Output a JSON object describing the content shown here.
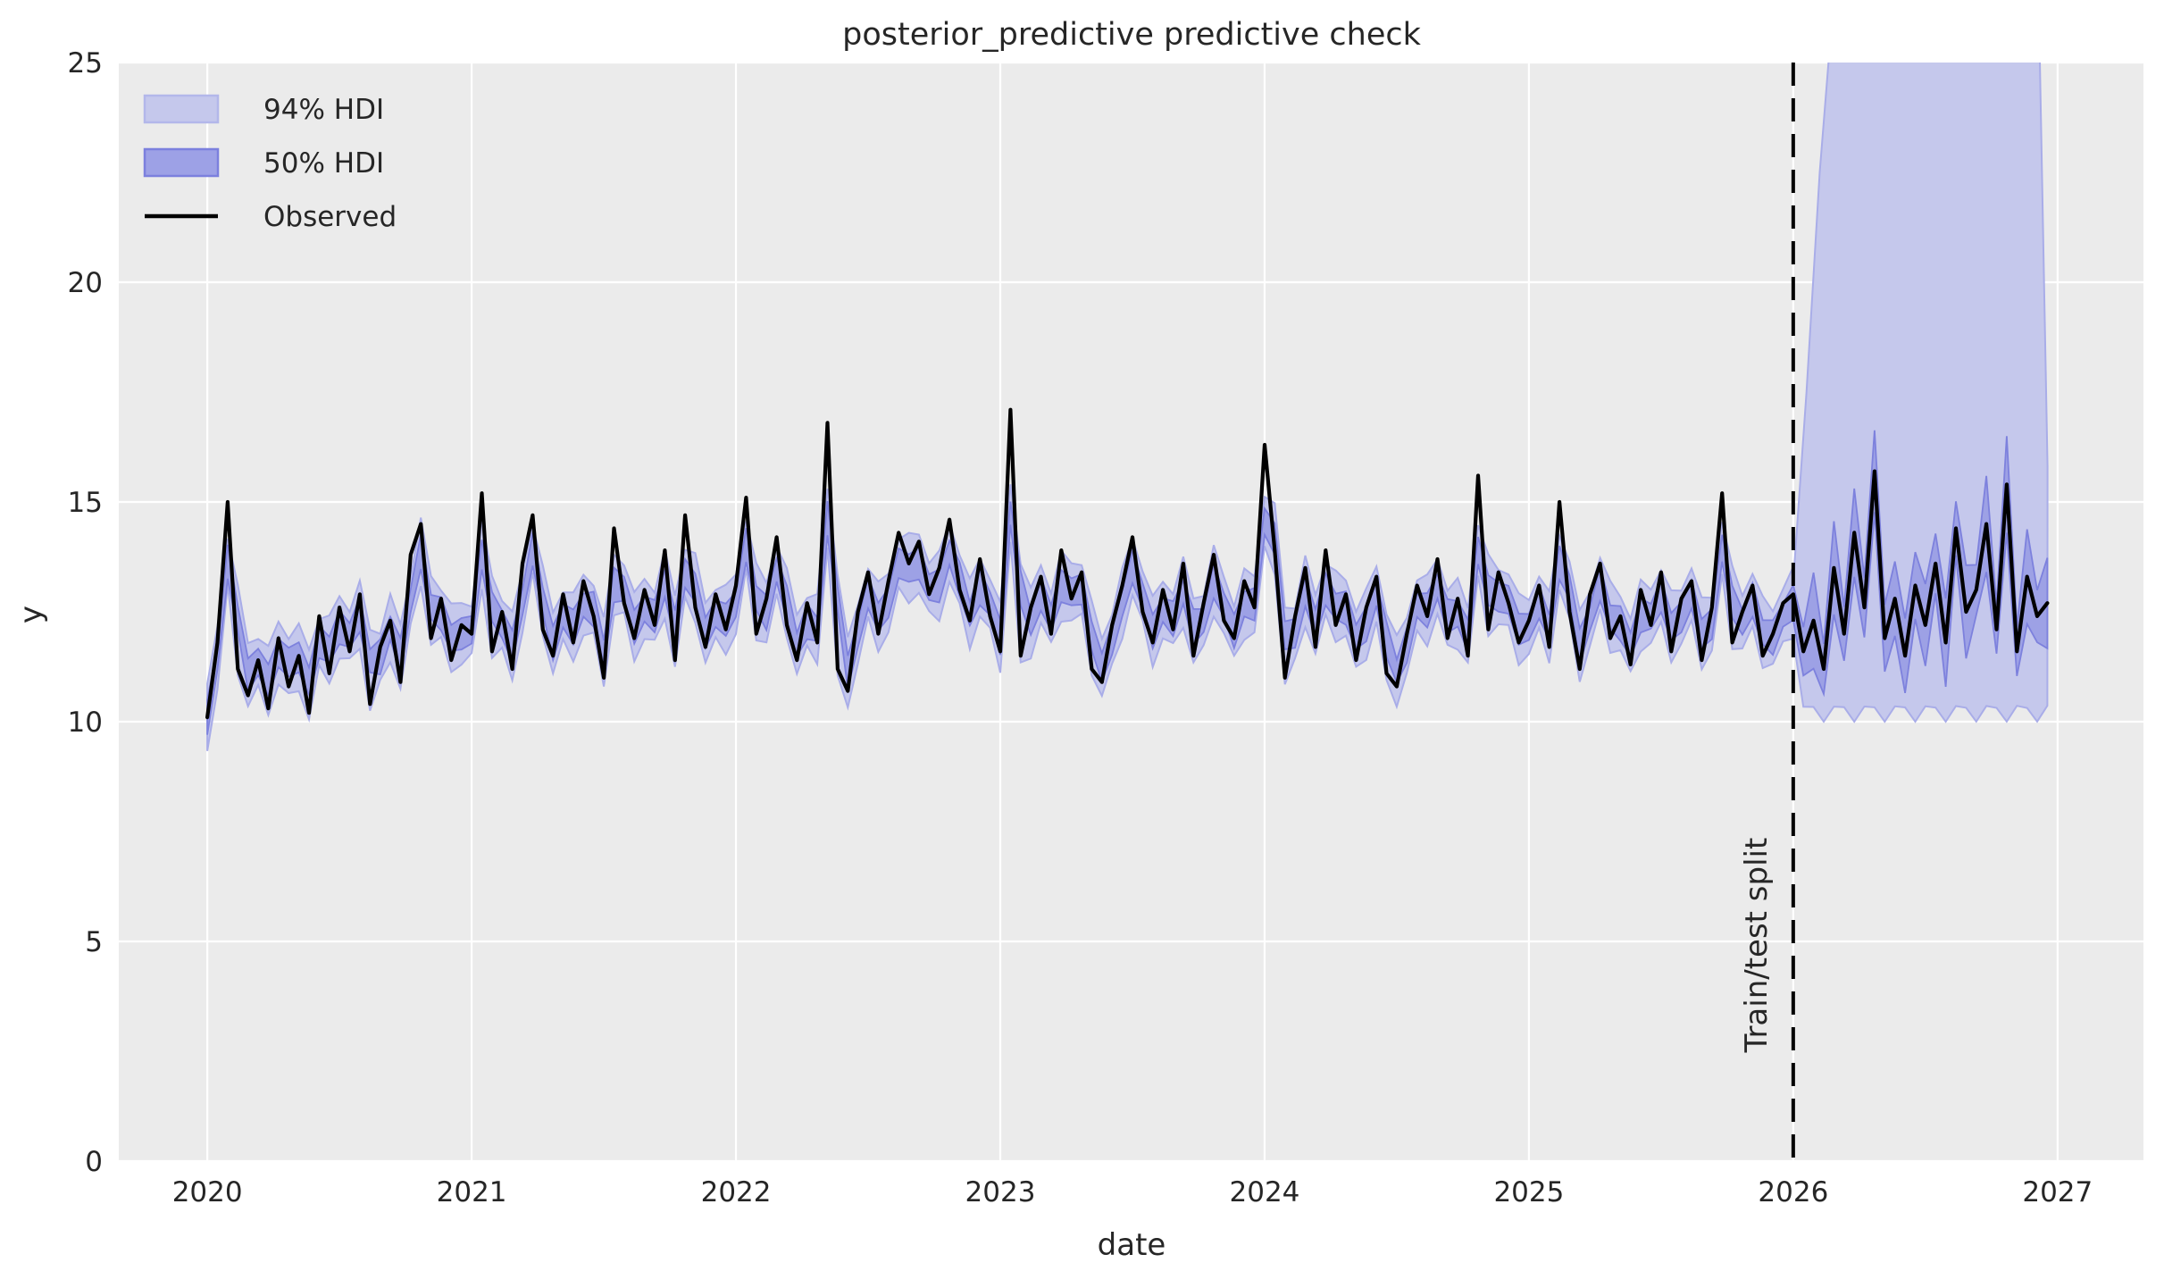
{
  "title": "posterior_predictive predictive check",
  "axes": {
    "xlabel": "date",
    "ylabel": "y"
  },
  "legend": {
    "items": [
      {
        "label": "94% HDI",
        "type": "patch",
        "fill": "#c5c8ec",
        "edge": "#b3b7ea"
      },
      {
        "label": "50% HDI",
        "type": "patch",
        "fill": "#9da1e6",
        "edge": "#7c80de"
      },
      {
        "label": "Observed",
        "type": "line",
        "color": "#000000"
      }
    ]
  },
  "annotations": {
    "split_label": "Train/test split",
    "split_x": 2026.0
  },
  "colors": {
    "figure_bg": "#ffffff",
    "plot_bg": "#ebebeb",
    "grid": "#ffffff",
    "hdi94_fill": "#c5c8ec",
    "hdi94_edge": "#a9ade8",
    "hdi50_fill": "#989ce4",
    "hdi50_edge": "#7d81dd",
    "observed_line": "#000000",
    "split_line": "#000000",
    "text": "#262626"
  },
  "chart_data": {
    "type": "line",
    "title": "posterior_predictive predictive check",
    "xlabel": "date",
    "ylabel": "y",
    "xlim": [
      2019.665,
      2027.325
    ],
    "ylim": [
      0,
      25
    ],
    "xticks": [
      2020,
      2021,
      2022,
      2023,
      2024,
      2025,
      2026,
      2027
    ],
    "yticks": [
      0,
      5,
      10,
      15,
      20,
      25
    ],
    "grid": "on",
    "legend_position": "upper left",
    "split_x": 2026.0,
    "observed": {
      "x_start": 2020.0,
      "x_step": 0.0384615,
      "values": [
        10.1,
        11.8,
        15.0,
        11.2,
        10.6,
        11.4,
        10.3,
        11.9,
        10.8,
        11.5,
        10.2,
        12.4,
        11.1,
        12.6,
        11.6,
        12.9,
        10.4,
        11.7,
        12.3,
        10.9,
        13.8,
        14.5,
        11.9,
        12.8,
        11.4,
        12.2,
        12.0,
        15.2,
        11.6,
        12.5,
        11.2,
        13.6,
        14.7,
        12.1,
        11.5,
        12.9,
        11.8,
        13.2,
        12.4,
        11.0,
        14.4,
        12.7,
        11.9,
        13.0,
        12.2,
        13.9,
        11.4,
        14.7,
        12.6,
        11.7,
        12.9,
        12.1,
        13.1,
        15.1,
        12.0,
        12.8,
        14.2,
        12.2,
        11.4,
        12.7,
        11.8,
        16.8,
        11.2,
        10.7,
        12.5,
        13.4,
        12.0,
        13.2,
        14.3,
        13.6,
        14.1,
        12.9,
        13.5,
        14.6,
        13.0,
        12.3,
        13.7,
        12.4,
        11.6,
        17.1,
        11.5,
        12.6,
        13.3,
        12.0,
        13.9,
        12.8,
        13.4,
        11.2,
        10.9,
        12.2,
        13.1,
        14.2,
        12.5,
        11.8,
        13.0,
        12.1,
        13.6,
        11.5,
        12.7,
        13.8,
        12.3,
        11.9,
        13.2,
        12.6,
        16.3,
        13.9,
        11.0,
        12.4,
        13.5,
        11.7,
        13.9,
        12.2,
        12.9,
        11.4,
        12.6,
        13.3,
        11.1,
        10.8,
        12.0,
        13.1,
        12.4,
        13.7,
        11.9,
        12.8,
        11.5,
        15.6,
        12.1,
        13.4,
        12.7,
        11.8,
        12.3,
        13.1,
        11.7,
        15.0,
        12.5,
        11.2,
        12.9,
        13.6,
        11.9,
        12.4,
        11.3,
        13.0,
        12.2,
        13.4,
        11.6,
        12.8,
        13.2,
        11.4,
        12.6,
        15.2,
        11.8,
        12.5,
        13.1,
        11.5,
        12.0,
        12.7,
        12.9,
        11.6,
        12.3,
        11.2,
        13.5,
        12.0,
        14.3,
        12.6,
        15.7,
        11.9,
        12.8,
        11.5,
        13.1,
        12.2,
        13.6,
        11.8,
        14.4,
        12.5,
        13.0,
        14.5,
        12.1,
        15.4,
        11.6,
        13.3,
        12.4,
        12.7
      ]
    },
    "bands": {
      "train": {
        "center_blend": [
          0.55,
          0.25,
          0.2
        ],
        "center_base": 12.2,
        "hdi94_halfwidth_base": 0.52,
        "hdi94_halfwidth_jitter": 0.3,
        "hdi50_halfwidth_base": 0.26,
        "hdi50_halfwidth_jitter": 0.14
      },
      "test": {
        "hdi50_halfwidth_base": 0.55,
        "hdi50_halfwidth_jitter": 0.55,
        "hdi94_lower_base": 10.45,
        "hdi94_lower_jitter": 0.45,
        "hdi94_upper_points": [
          [
            2026.0,
            13.2
          ],
          [
            2026.05,
            17.5
          ],
          [
            2026.1,
            22.5
          ],
          [
            2026.16,
            27.0
          ],
          [
            2026.3,
            45.0
          ],
          [
            2026.5,
            60.0
          ],
          [
            2026.7,
            55.0
          ],
          [
            2026.85,
            32.0
          ],
          [
            2026.93,
            26.0
          ],
          [
            2026.962,
            15.8
          ]
        ]
      }
    }
  }
}
